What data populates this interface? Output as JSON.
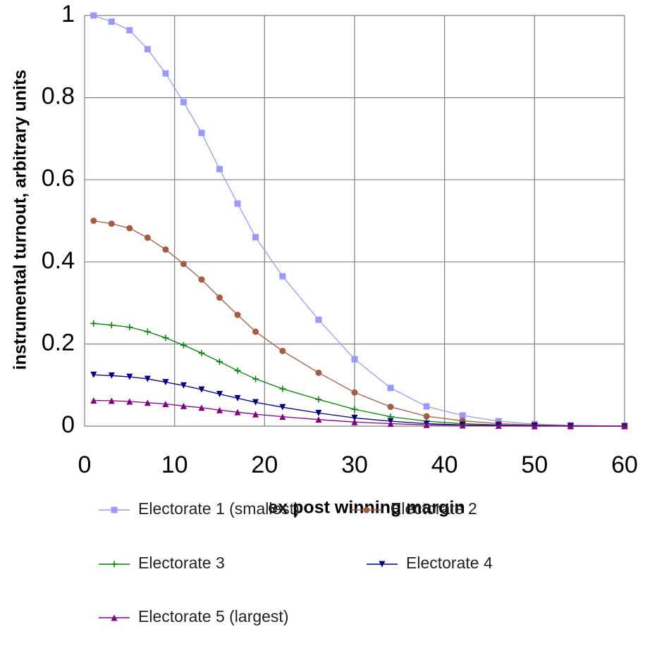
{
  "chart_data": {
    "type": "line",
    "xlabel": "ex post winning margin",
    "ylabel": "instrumental turnout, arbitrary units",
    "x": [
      1,
      3,
      5,
      7,
      9,
      11,
      13,
      15,
      17,
      19,
      22,
      26,
      30,
      34,
      38,
      42,
      46,
      50,
      54,
      60
    ],
    "series": [
      {
        "name": "Electorate 1 (smallest)",
        "color": "#9999ff",
        "marker": "square",
        "values": [
          1.0,
          0.985,
          0.964,
          0.918,
          0.859,
          0.789,
          0.714,
          0.626,
          0.542,
          0.46,
          0.365,
          0.259,
          0.163,
          0.093,
          0.048,
          0.026,
          0.012,
          0.005,
          0.002,
          0
        ]
      },
      {
        "name": "Electorate 2",
        "color": "#a65b45",
        "marker": "circle",
        "values": [
          0.5,
          0.493,
          0.482,
          0.459,
          0.43,
          0.395,
          0.357,
          0.313,
          0.271,
          0.23,
          0.183,
          0.13,
          0.082,
          0.047,
          0.024,
          0.013,
          0.006,
          0.003,
          0.001,
          0
        ]
      },
      {
        "name": "Electorate 3",
        "color": "#008000",
        "marker": "plus",
        "values": [
          0.25,
          0.246,
          0.241,
          0.23,
          0.215,
          0.197,
          0.178,
          0.157,
          0.135,
          0.115,
          0.091,
          0.065,
          0.041,
          0.023,
          0.012,
          0.006,
          0.003,
          0.001,
          0,
          0
        ]
      },
      {
        "name": "Electorate 4",
        "color": "#000080",
        "marker": "triangle-down",
        "values": [
          0.125,
          0.123,
          0.12,
          0.115,
          0.107,
          0.099,
          0.089,
          0.078,
          0.068,
          0.058,
          0.046,
          0.032,
          0.02,
          0.012,
          0.006,
          0.003,
          0.002,
          0.001,
          0,
          0
        ]
      },
      {
        "name": "Electorate 5 (largest)",
        "color": "#800080",
        "marker": "triangle-up",
        "values": [
          0.0625,
          0.062,
          0.06,
          0.057,
          0.054,
          0.049,
          0.045,
          0.039,
          0.034,
          0.029,
          0.023,
          0.016,
          0.01,
          0.006,
          0.003,
          0.002,
          0.001,
          0,
          0,
          0
        ]
      }
    ],
    "xlim": [
      0,
      60
    ],
    "xticks": [
      0,
      10,
      20,
      30,
      40,
      50,
      60
    ],
    "ylim": [
      0,
      1
    ],
    "yticks": [
      0,
      0.2,
      0.4,
      0.6,
      0.8,
      1
    ],
    "grid": true
  }
}
